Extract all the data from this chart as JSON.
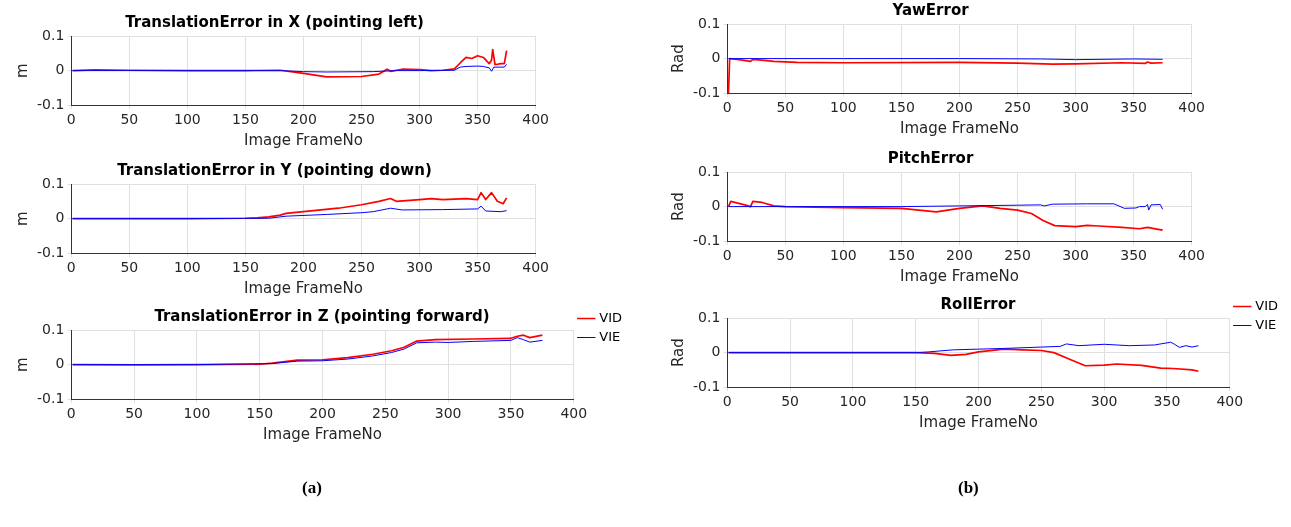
{
  "chart_data": [
    {
      "type": "line",
      "title": "TranslationError in X (pointing left)",
      "xlabel": "Image FrameNo",
      "ylabel": "m",
      "xlim": [
        0,
        400
      ],
      "xticks": [
        0,
        50,
        100,
        150,
        200,
        250,
        300,
        350,
        400
      ],
      "ylim": [
        -0.1,
        0.1
      ],
      "yticks": [
        -0.1,
        0,
        0.1
      ],
      "grid": true,
      "marker": "none",
      "line_style": "solid",
      "series": [
        {
          "color": "#ff0000",
          "x": [
            1,
            20,
            50,
            100,
            150,
            180,
            200,
            220,
            250,
            265,
            272,
            275,
            285,
            300,
            310,
            320,
            330,
            335,
            340,
            345,
            350,
            355,
            360,
            362,
            363,
            365,
            370,
            373,
            375
          ],
          "values": [
            0,
            0.002,
            0.001,
            0,
            0,
            0.001,
            -0.008,
            -0.018,
            -0.017,
            -0.01,
            0.004,
            -0.002,
            0.004,
            0.003,
            0,
            0.001,
            0.005,
            0.022,
            0.038,
            0.035,
            0.043,
            0.038,
            0.02,
            0.03,
            0.061,
            0.017,
            0.02,
            0.02,
            0.058
          ]
        },
        {
          "color": "#0000ff",
          "x": [
            1,
            50,
            100,
            150,
            180,
            200,
            220,
            260,
            280,
            300,
            330,
            335,
            340,
            350,
            355,
            360,
            362,
            364,
            370,
            373,
            375
          ],
          "values": [
            0,
            0,
            0,
            0,
            0,
            -0.003,
            -0.004,
            -0.003,
            0,
            0,
            0.001,
            0.01,
            0.012,
            0.013,
            0.012,
            0.008,
            -0.002,
            0.01,
            0.01,
            0.01,
            0.018
          ]
        }
      ]
    },
    {
      "type": "line",
      "title": "TranslationError in Y (pointing down)",
      "xlabel": "Image FrameNo",
      "ylabel": "m",
      "xlim": [
        0,
        400
      ],
      "xticks": [
        0,
        50,
        100,
        150,
        200,
        250,
        300,
        350,
        400
      ],
      "ylim": [
        -0.1,
        0.1
      ],
      "yticks": [
        -0.1,
        0,
        0.1
      ],
      "grid": true,
      "marker": "none",
      "line_style": "solid",
      "series": [
        {
          "color": "#ff0000",
          "x": [
            1,
            100,
            150,
            160,
            170,
            180,
            185,
            200,
            230,
            250,
            265,
            275,
            280,
            300,
            310,
            320,
            340,
            350,
            353,
            357,
            362,
            367,
            372,
            375
          ],
          "values": [
            0,
            0,
            0.001,
            0.002,
            0.005,
            0.01,
            0.015,
            0.02,
            0.03,
            0.04,
            0.05,
            0.058,
            0.05,
            0.055,
            0.058,
            0.055,
            0.058,
            0.055,
            0.075,
            0.055,
            0.075,
            0.05,
            0.043,
            0.06
          ]
        },
        {
          "color": "#0000ff",
          "x": [
            1,
            100,
            170,
            185,
            220,
            250,
            260,
            275,
            285,
            320,
            350,
            353,
            357,
            370,
            375
          ],
          "values": [
            0,
            0,
            0.001,
            0.007,
            0.012,
            0.017,
            0.02,
            0.03,
            0.025,
            0.026,
            0.028,
            0.036,
            0.022,
            0.02,
            0.023
          ]
        }
      ]
    },
    {
      "type": "line",
      "title": "TranslationError in Z (pointing forward)",
      "xlabel": "Image FrameNo",
      "ylabel": "m",
      "xlim": [
        0,
        400
      ],
      "xticks": [
        0,
        50,
        100,
        150,
        200,
        250,
        300,
        350,
        400
      ],
      "ylim": [
        -0.1,
        0.1
      ],
      "yticks": [
        -0.1,
        0,
        0.1
      ],
      "grid": true,
      "marker": "none",
      "line_style": "solid",
      "legend": "top right",
      "annotations": [
        "(a)"
      ],
      "series": [
        {
          "name": "VID",
          "color": "#ff0000",
          "x": [
            1,
            50,
            100,
            150,
            160,
            180,
            200,
            220,
            240,
            255,
            265,
            275,
            290,
            320,
            350,
            355,
            360,
            365,
            375
          ],
          "values": [
            0,
            -0.001,
            0,
            0.001,
            0.004,
            0.013,
            0.014,
            0.02,
            0.03,
            0.04,
            0.05,
            0.068,
            0.072,
            0.074,
            0.076,
            0.082,
            0.085,
            0.078,
            0.085
          ]
        },
        {
          "name": "VIE",
          "color": "#0000ff",
          "x": [
            1,
            100,
            160,
            180,
            200,
            220,
            240,
            255,
            265,
            275,
            290,
            300,
            320,
            350,
            355,
            360,
            365,
            375
          ],
          "values": [
            0,
            0,
            0.003,
            0.01,
            0.011,
            0.016,
            0.025,
            0.035,
            0.045,
            0.063,
            0.065,
            0.064,
            0.067,
            0.07,
            0.078,
            0.072,
            0.065,
            0.07
          ]
        }
      ]
    },
    {
      "type": "line",
      "title": "YawError",
      "xlabel": "Image FrameNo",
      "ylabel": "Rad",
      "xlim": [
        0,
        400
      ],
      "xticks": [
        0,
        50,
        100,
        150,
        200,
        250,
        300,
        350,
        400
      ],
      "ylim": [
        -0.1,
        0.1
      ],
      "yticks": [
        -0.1,
        0,
        0.1
      ],
      "grid": true,
      "marker": "none",
      "line_style": "solid",
      "series": [
        {
          "color": "#ff0000",
          "x": [
            1,
            2,
            10,
            20,
            22,
            40,
            60,
            100,
            200,
            250,
            280,
            300,
            340,
            360,
            362,
            365,
            375
          ],
          "values": [
            -0.1,
            0,
            -0.003,
            -0.008,
            -0.002,
            -0.008,
            -0.011,
            -0.012,
            -0.011,
            -0.013,
            -0.016,
            -0.015,
            -0.012,
            -0.014,
            -0.01,
            -0.013,
            -0.012
          ]
        },
        {
          "color": "#0000ff",
          "x": [
            1,
            100,
            200,
            270,
            300,
            350,
            375
          ],
          "values": [
            0,
            0,
            0,
            -0.001,
            -0.003,
            -0.001,
            -0.002
          ]
        }
      ]
    },
    {
      "type": "line",
      "title": "PitchError",
      "xlabel": "Image FrameNo",
      "ylabel": "Rad",
      "xlim": [
        0,
        400
      ],
      "xticks": [
        0,
        50,
        100,
        150,
        200,
        250,
        300,
        350,
        400
      ],
      "ylim": [
        -0.1,
        0.1
      ],
      "yticks": [
        -0.1,
        0,
        0.1
      ],
      "grid": true,
      "marker": "none",
      "line_style": "solid",
      "series": [
        {
          "color": "#ff0000",
          "x": [
            1,
            3,
            15,
            20,
            22,
            30,
            40,
            50,
            100,
            150,
            180,
            200,
            220,
            235,
            250,
            262,
            272,
            282,
            300,
            310,
            320,
            340,
            355,
            362,
            370,
            375
          ],
          "values": [
            0,
            0.015,
            0.005,
            0,
            0.015,
            0.012,
            0.002,
            0,
            -0.003,
            -0.005,
            -0.015,
            -0.005,
            0.002,
            -0.005,
            -0.01,
            -0.02,
            -0.04,
            -0.055,
            -0.058,
            -0.054,
            -0.056,
            -0.06,
            -0.064,
            -0.06,
            -0.065,
            -0.068
          ]
        },
        {
          "color": "#0000ff",
          "x": [
            1,
            150,
            200,
            250,
            270,
            273,
            280,
            310,
            333,
            340,
            342,
            352,
            355,
            360,
            362,
            363,
            365,
            373,
            375
          ],
          "values": [
            0,
            0,
            0.002,
            0.004,
            0.005,
            0.002,
            0.007,
            0.008,
            0.008,
            -0.002,
            -0.005,
            -0.004,
            0,
            0,
            0.006,
            -0.01,
            0.005,
            0.006,
            -0.008
          ]
        }
      ]
    },
    {
      "type": "line",
      "title": "RollError",
      "xlabel": "Image FrameNo",
      "ylabel": "Rad",
      "xlim": [
        0,
        400
      ],
      "xticks": [
        0,
        50,
        100,
        150,
        200,
        250,
        300,
        350,
        400
      ],
      "ylim": [
        -0.1,
        0.1
      ],
      "yticks": [
        -0.1,
        0,
        0.1
      ],
      "grid": true,
      "marker": "none",
      "line_style": "solid",
      "legend": "top right",
      "annotations": [
        "(b)"
      ],
      "series": [
        {
          "name": "VID",
          "color": "#ff0000",
          "x": [
            1,
            100,
            150,
            165,
            178,
            190,
            200,
            220,
            235,
            250,
            260,
            273,
            285,
            300,
            310,
            330,
            345,
            355,
            370,
            375
          ],
          "values": [
            0,
            0,
            0,
            -0.002,
            -0.008,
            -0.005,
            0.002,
            0.01,
            0.008,
            0.006,
            0,
            -0.02,
            -0.038,
            -0.036,
            -0.033,
            -0.037,
            -0.045,
            -0.046,
            -0.05,
            -0.054
          ]
        },
        {
          "name": "VIE",
          "color": "#0000ff",
          "x": [
            1,
            100,
            150,
            160,
            180,
            200,
            220,
            250,
            265,
            270,
            280,
            300,
            320,
            340,
            353,
            356,
            360,
            365,
            370,
            375
          ],
          "values": [
            0,
            0,
            0,
            0.002,
            0.008,
            0.01,
            0.012,
            0.016,
            0.018,
            0.025,
            0.02,
            0.024,
            0.02,
            0.022,
            0.03,
            0.024,
            0.015,
            0.02,
            0.016,
            0.02
          ]
        }
      ]
    }
  ]
}
